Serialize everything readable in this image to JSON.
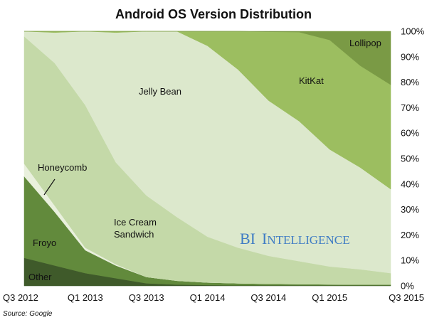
{
  "chart_data": {
    "type": "area",
    "stacked": true,
    "normalized": true,
    "title": "Android OS Version Distribution",
    "xlabel": "",
    "ylabel": "",
    "ylim": [
      0,
      100
    ],
    "x_tick_labels": [
      "Q3 2012",
      "Q1 2013",
      "Q3 2013",
      "Q1 2014",
      "Q3 2014",
      "Q1 2015",
      "Q3 2015"
    ],
    "y_tick_labels": [
      "0%",
      "10%",
      "20%",
      "30%",
      "40%",
      "50%",
      "60%",
      "70%",
      "80%",
      "90%",
      "100%"
    ],
    "x": [
      "Q3 2012",
      "Q4 2012",
      "Q1 2013",
      "Q2 2013",
      "Q3 2013",
      "Q4 2013",
      "Q1 2014",
      "Q2 2014",
      "Q3 2014",
      "Q4 2014",
      "Q1 2015",
      "Q2 2015",
      "Q3 2015"
    ],
    "series": [
      {
        "name": "Other",
        "color": "#3f5a2a",
        "values": [
          11,
          8,
          5,
          3,
          1,
          0.5,
          0.3,
          0.2,
          0.2,
          0.2,
          0.2,
          0.2,
          0.2
        ]
      },
      {
        "name": "Froyo",
        "color": "#628a3c",
        "values": [
          32,
          21,
          9,
          5,
          2.5,
          1.5,
          1,
          0.8,
          0.6,
          0.5,
          0.4,
          0.3,
          0.3
        ]
      },
      {
        "name": "Honeycomb",
        "color": "#e9f0dd",
        "values": [
          5,
          2.5,
          1,
          0.5,
          0,
          0,
          0,
          0,
          0,
          0,
          0,
          0,
          0
        ]
      },
      {
        "name": "Ice Cream Sandwich",
        "color": "#c4d9a8",
        "values": [
          50,
          56,
          56,
          40,
          32,
          25,
          18,
          14,
          11,
          9,
          7,
          6,
          4.5
        ]
      },
      {
        "name": "Jelly Bean",
        "color": "#dce8cc",
        "values": [
          2,
          12,
          29,
          51,
          64.5,
          73,
          75,
          70,
          61,
          55,
          46,
          40,
          33
        ]
      },
      {
        "name": "KitKat",
        "color": "#9cbe60",
        "values": [
          0,
          0.5,
          0,
          0.5,
          0,
          0,
          5.7,
          15,
          27,
          35,
          43,
          40,
          41
        ]
      },
      {
        "name": "Lollipop",
        "color": "#7a9a45",
        "values": [
          0,
          0,
          0,
          0,
          0,
          0,
          0,
          0,
          0.2,
          0.3,
          3.4,
          13.5,
          21
        ]
      }
    ],
    "area_labels": {
      "other": "Other",
      "froyo": "Froyo",
      "honeycomb": "Honeycomb",
      "ics_line1": "Ice Cream",
      "ics_line2": "Sandwich",
      "jellybean": "Jelly Bean",
      "kitkat": "KitKat",
      "lollipop": "Lollipop"
    },
    "watermark": {
      "text_b": "BI",
      "text_i": "I",
      "text_rest": "NTELLIGENCE",
      "color": "#3f7cc4"
    },
    "source": "Source: Google"
  }
}
